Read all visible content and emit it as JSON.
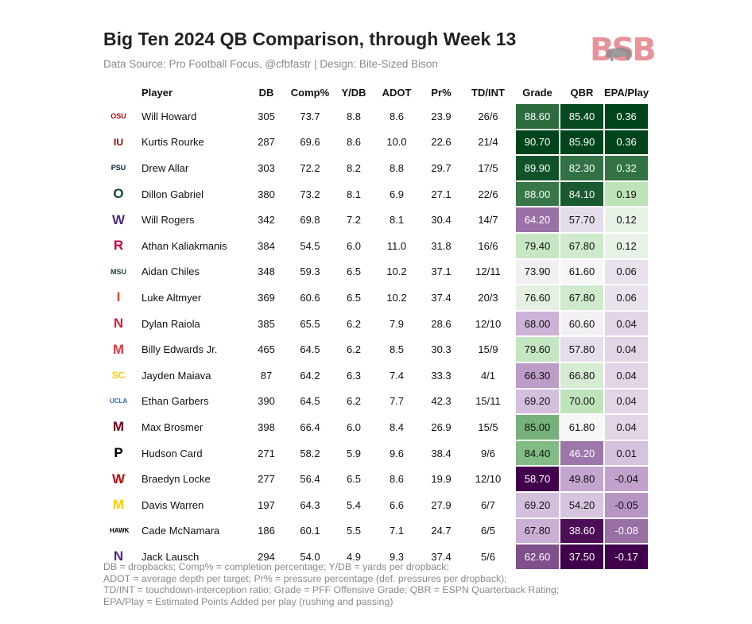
{
  "header": {
    "title": "Big Ten 2024 QB Comparison, through Week 13",
    "subtitle": "Data Source: Pro Football Focus, @cfbfastr | Design: Bite-Sized Bison",
    "logo_text": "BSB"
  },
  "chart_data": {
    "type": "table",
    "columns": [
      "",
      "Player",
      "DB",
      "Comp%",
      "Y/DB",
      "ADOT",
      "Pr%",
      "TD/INT",
      "Grade",
      "QBR",
      "EPA/Play"
    ],
    "rows": [
      {
        "team_logo": "ohio-state-logo",
        "logo_text": "OSU",
        "logo_color": "#bb0000",
        "player": "Will Howard",
        "db": "305",
        "comp": "73.7",
        "ydb": "8.8",
        "adot": "8.6",
        "pr": "23.9",
        "tdint": "26/6",
        "grade": "88.60",
        "qbr": "85.40",
        "epa": "0.36"
      },
      {
        "team_logo": "indiana-logo",
        "logo_text": "IU",
        "logo_color": "#990000",
        "player": "Kurtis Rourke",
        "db": "287",
        "comp": "69.6",
        "ydb": "8.6",
        "adot": "10.0",
        "pr": "22.6",
        "tdint": "21/4",
        "grade": "90.70",
        "qbr": "85.90",
        "epa": "0.36"
      },
      {
        "team_logo": "penn-state-logo",
        "logo_text": "PSU",
        "logo_color": "#041e42",
        "player": "Drew Allar",
        "db": "303",
        "comp": "72.2",
        "ydb": "8.2",
        "adot": "8.8",
        "pr": "29.7",
        "tdint": "17/5",
        "grade": "89.90",
        "qbr": "82.30",
        "epa": "0.32"
      },
      {
        "team_logo": "oregon-logo",
        "logo_text": "O",
        "logo_color": "#154733",
        "player": "Dillon Gabriel",
        "db": "380",
        "comp": "73.2",
        "ydb": "8.1",
        "adot": "6.9",
        "pr": "27.1",
        "tdint": "22/6",
        "grade": "88.00",
        "qbr": "84.10",
        "epa": "0.19"
      },
      {
        "team_logo": "washington-logo",
        "logo_text": "W",
        "logo_color": "#4b2e83",
        "player": "Will Rogers",
        "db": "342",
        "comp": "69.8",
        "ydb": "7.2",
        "adot": "8.1",
        "pr": "30.4",
        "tdint": "14/7",
        "grade": "64.20",
        "qbr": "57.70",
        "epa": "0.12"
      },
      {
        "team_logo": "rutgers-logo",
        "logo_text": "R",
        "logo_color": "#cc0033",
        "player": "Athan Kaliakmanis",
        "db": "384",
        "comp": "54.5",
        "ydb": "6.0",
        "adot": "11.0",
        "pr": "31.8",
        "tdint": "16/6",
        "grade": "79.40",
        "qbr": "67.80",
        "epa": "0.12"
      },
      {
        "team_logo": "michigan-state-logo",
        "logo_text": "MSU",
        "logo_color": "#18453b",
        "player": "Aidan Chiles",
        "db": "348",
        "comp": "59.3",
        "ydb": "6.5",
        "adot": "10.2",
        "pr": "37.1",
        "tdint": "12/11",
        "grade": "73.90",
        "qbr": "61.60",
        "epa": "0.06"
      },
      {
        "team_logo": "illinois-logo",
        "logo_text": "I",
        "logo_color": "#e84a27",
        "player": "Luke Altmyer",
        "db": "369",
        "comp": "60.6",
        "ydb": "6.5",
        "adot": "10.2",
        "pr": "37.4",
        "tdint": "20/3",
        "grade": "76.60",
        "qbr": "67.80",
        "epa": "0.06"
      },
      {
        "team_logo": "nebraska-logo",
        "logo_text": "N",
        "logo_color": "#e41c38",
        "player": "Dylan Raiola",
        "db": "385",
        "comp": "65.5",
        "ydb": "6.2",
        "adot": "7.9",
        "pr": "28.6",
        "tdint": "12/10",
        "grade": "68.00",
        "qbr": "60.60",
        "epa": "0.04"
      },
      {
        "team_logo": "maryland-logo",
        "logo_text": "M",
        "logo_color": "#e03a3e",
        "player": "Billy Edwards Jr.",
        "db": "465",
        "comp": "64.5",
        "ydb": "6.2",
        "adot": "8.5",
        "pr": "30.3",
        "tdint": "15/9",
        "grade": "79.60",
        "qbr": "57.80",
        "epa": "0.04"
      },
      {
        "team_logo": "usc-logo",
        "logo_text": "SC",
        "logo_color": "#ffcc00",
        "player": "Jayden Maiava",
        "db": "87",
        "comp": "64.2",
        "ydb": "6.3",
        "adot": "7.4",
        "pr": "33.3",
        "tdint": "4/1",
        "grade": "66.30",
        "qbr": "66.80",
        "epa": "0.04"
      },
      {
        "team_logo": "ucla-logo",
        "logo_text": "UCLA",
        "logo_color": "#2d68c4",
        "player": "Ethan Garbers",
        "db": "390",
        "comp": "64.5",
        "ydb": "6.2",
        "adot": "7.7",
        "pr": "42.3",
        "tdint": "15/11",
        "grade": "69.20",
        "qbr": "70.00",
        "epa": "0.04"
      },
      {
        "team_logo": "minnesota-logo",
        "logo_text": "M",
        "logo_color": "#7a0019",
        "player": "Max Brosmer",
        "db": "398",
        "comp": "66.4",
        "ydb": "6.0",
        "adot": "8.4",
        "pr": "26.9",
        "tdint": "15/5",
        "grade": "85.00",
        "qbr": "61.80",
        "epa": "0.04"
      },
      {
        "team_logo": "purdue-logo",
        "logo_text": "P",
        "logo_color": "#000000",
        "player": "Hudson Card",
        "db": "271",
        "comp": "58.2",
        "ydb": "5.9",
        "adot": "9.6",
        "pr": "38.4",
        "tdint": "9/6",
        "grade": "84.40",
        "qbr": "46.20",
        "epa": "0.01"
      },
      {
        "team_logo": "wisconsin-logo",
        "logo_text": "W",
        "logo_color": "#c5050c",
        "player": "Braedyn Locke",
        "db": "277",
        "comp": "56.4",
        "ydb": "6.5",
        "adot": "8.6",
        "pr": "19.9",
        "tdint": "12/10",
        "grade": "58.70",
        "qbr": "49.80",
        "epa": "-0.04"
      },
      {
        "team_logo": "michigan-logo",
        "logo_text": "M",
        "logo_color": "#ffcb05",
        "player": "Davis Warren",
        "db": "197",
        "comp": "64.3",
        "ydb": "5.4",
        "adot": "6.6",
        "pr": "27.9",
        "tdint": "6/7",
        "grade": "69.20",
        "qbr": "54.20",
        "epa": "-0.05"
      },
      {
        "team_logo": "iowa-logo",
        "logo_text": "HAWK",
        "logo_color": "#000000",
        "player": "Cade McNamara",
        "db": "186",
        "comp": "60.1",
        "ydb": "5.5",
        "adot": "7.1",
        "pr": "24.7",
        "tdint": "6/5",
        "grade": "67.80",
        "qbr": "38.60",
        "epa": "-0.08"
      },
      {
        "team_logo": "northwestern-logo",
        "logo_text": "N",
        "logo_color": "#4e2a84",
        "player": "Jack Lausch",
        "db": "294",
        "comp": "54.0",
        "ydb": "4.9",
        "adot": "9.3",
        "pr": "37.4",
        "tdint": "5/6",
        "grade": "62.60",
        "qbr": "37.50",
        "epa": "-0.17"
      }
    ],
    "color_scale": {
      "low": "#40004b",
      "mid_low": "#c2a5cf",
      "mid": "#f7f7f7",
      "mid_high": "#a6dba0",
      "high": "#00441b"
    }
  },
  "footnotes": [
    "DB = dropbacks; Comp% = completion percentage; Y/DB = yards per dropback;",
    "ADOT = average depth per target; Pr% = pressure percentage (def. pressures per dropback);",
    "TD/INT = touchdown-interception ratio; Grade = PFF Offensive Grade; QBR = ESPN Quarterback Rating;",
    "EPA/Play = Estimated Points Added per play (rushing and passing)"
  ]
}
